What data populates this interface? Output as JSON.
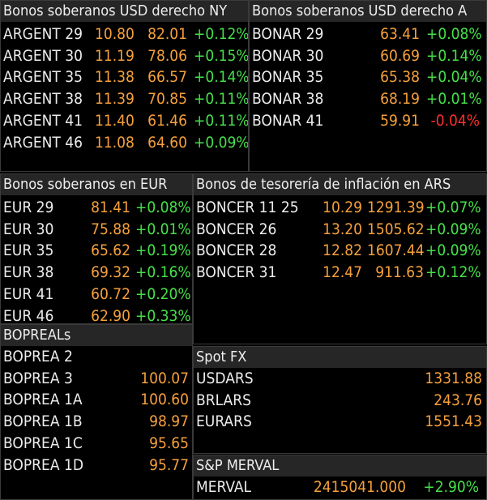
{
  "usd_ny": {
    "title": "Bonos soberanos USD derecho NY",
    "rows": [
      {
        "name": "ARGENT 29",
        "yield": "10.80",
        "price": "82.01",
        "change": "+0.12%"
      },
      {
        "name": "ARGENT 30",
        "yield": "11.19",
        "price": "78.06",
        "change": "+0.15%"
      },
      {
        "name": "ARGENT 35",
        "yield": "11.38",
        "price": "66.57",
        "change": "+0.14%"
      },
      {
        "name": "ARGENT 38",
        "yield": "11.39",
        "price": "70.85",
        "change": "+0.11%"
      },
      {
        "name": "ARGENT 41",
        "yield": "11.40",
        "price": "61.46",
        "change": "+0.11%"
      },
      {
        "name": "ARGENT 46",
        "yield": "11.08",
        "price": "64.60",
        "change": "+0.09%"
      }
    ]
  },
  "usd_ar": {
    "title": "Bonos soberanos USD derecho A",
    "rows": [
      {
        "name": "BONAR 29",
        "price": "63.41",
        "change": "+0.08%",
        "direction": "up"
      },
      {
        "name": "BONAR 30",
        "price": "60.69",
        "change": "+0.14%",
        "direction": "up"
      },
      {
        "name": "BONAR 35",
        "price": "65.38",
        "change": "+0.04%",
        "direction": "up"
      },
      {
        "name": "BONAR 38",
        "price": "68.19",
        "change": "+0.01%",
        "direction": "up"
      },
      {
        "name": "BONAR 41",
        "price": "59.91",
        "change": "-0.04%",
        "direction": "down"
      }
    ]
  },
  "eur": {
    "title": "Bonos soberanos en EUR",
    "rows": [
      {
        "name": "EUR 29",
        "price": "81.41",
        "change": "+0.08%"
      },
      {
        "name": "EUR 30",
        "price": "75.88",
        "change": "+0.01%"
      },
      {
        "name": "EUR 35",
        "price": "65.62",
        "change": "+0.19%"
      },
      {
        "name": "EUR 38",
        "price": "69.32",
        "change": "+0.16%"
      },
      {
        "name": "EUR 41",
        "price": "60.72",
        "change": "+0.20%"
      },
      {
        "name": "EUR 46",
        "price": "62.90",
        "change": "+0.33%"
      }
    ]
  },
  "inflation": {
    "title": "Bonos de tesorería de inflación en ARS",
    "rows": [
      {
        "name": "BONCER 11 25",
        "yield": "10.29",
        "price": "1291.39",
        "change": "+0.07%"
      },
      {
        "name": "BONCER 26",
        "yield": "13.20",
        "price": "1505.62",
        "change": "+0.09%"
      },
      {
        "name": "BONCER 28",
        "yield": "12.82",
        "price": "1607.44",
        "change": "+0.09%"
      },
      {
        "name": "BONCER 31",
        "yield": "12.47",
        "price": "911.63",
        "change": "+0.12%"
      }
    ]
  },
  "bopreal": {
    "title": "BOPREALs",
    "rows": [
      {
        "name": "BOPREA 2",
        "price": ""
      },
      {
        "name": "BOPREA 3",
        "price": "100.07"
      },
      {
        "name": "BOPREA 1A",
        "price": "100.60"
      },
      {
        "name": "BOPREA 1B",
        "price": "98.97"
      },
      {
        "name": "BOPREA 1C",
        "price": "95.65"
      },
      {
        "name": "BOPREA 1D",
        "price": "95.77"
      }
    ]
  },
  "fx": {
    "title": "Spot FX",
    "rows": [
      {
        "name": "USDARS",
        "price": "1331.88"
      },
      {
        "name": "BRLARS",
        "price": "243.76"
      },
      {
        "name": "EURARS",
        "price": "1551.43"
      }
    ]
  },
  "merval": {
    "title": "S&P MERVAL",
    "rows": [
      {
        "name": "MERVAL",
        "price": "2415041.000",
        "change": "+2.90%"
      }
    ]
  },
  "colors": {
    "name": "#ececec",
    "value": "#f5a03c",
    "up": "#46e04a",
    "down": "#ff2e2e",
    "header_bg": "#262626"
  }
}
